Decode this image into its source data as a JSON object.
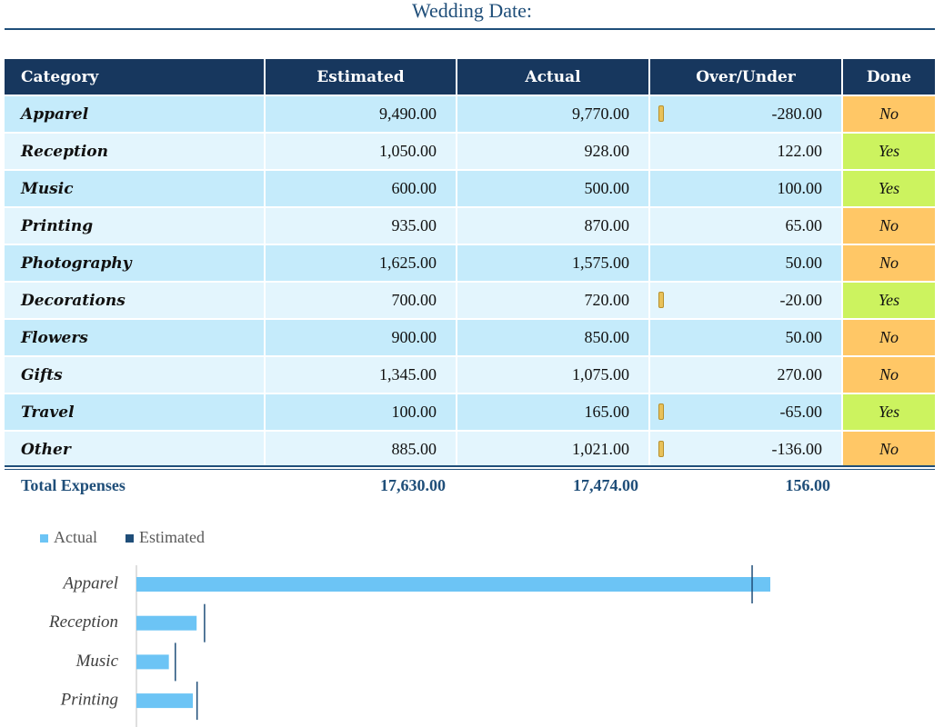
{
  "header": {
    "title": "Wedding Date:"
  },
  "table": {
    "columns": [
      "Category",
      "Estimated",
      "Actual",
      "Over/Under",
      "Done"
    ],
    "rows": [
      [
        "Apparel",
        "9,490.00",
        "9,770.00",
        "-280.00",
        "No"
      ],
      [
        "Reception",
        "1,050.00",
        "928.00",
        "122.00",
        "Yes"
      ],
      [
        "Music",
        "600.00",
        "500.00",
        "100.00",
        "Yes"
      ],
      [
        "Printing",
        "935.00",
        "870.00",
        "65.00",
        "No"
      ],
      [
        "Photography",
        "1,625.00",
        "1,575.00",
        "50.00",
        "No"
      ],
      [
        "Decorations",
        "700.00",
        "720.00",
        "-20.00",
        "Yes"
      ],
      [
        "Flowers",
        "900.00",
        "850.00",
        "50.00",
        "No"
      ],
      [
        "Gifts",
        "1,345.00",
        "1,075.00",
        "270.00",
        "No"
      ],
      [
        "Travel",
        "100.00",
        "165.00",
        "-65.00",
        "Yes"
      ],
      [
        "Other",
        "885.00",
        "1,021.00",
        "-136.00",
        "No"
      ]
    ],
    "total": [
      "Total Expenses",
      "17,630.00",
      "17,474.00",
      "156.00"
    ],
    "done_colors": {
      "Yes": "#ccf35f",
      "No": "#ffc766"
    }
  },
  "chart_data": {
    "type": "bar",
    "orientation": "horizontal",
    "categories": [
      "Apparel",
      "Reception",
      "Music",
      "Printing"
    ],
    "series": [
      {
        "name": "Actual",
        "color": "#6cc4f5",
        "values": [
          9770,
          928,
          500,
          870
        ]
      },
      {
        "name": "Estimated",
        "color": "#1f4e79",
        "values": [
          9490,
          1050,
          600,
          935
        ]
      }
    ]
  }
}
